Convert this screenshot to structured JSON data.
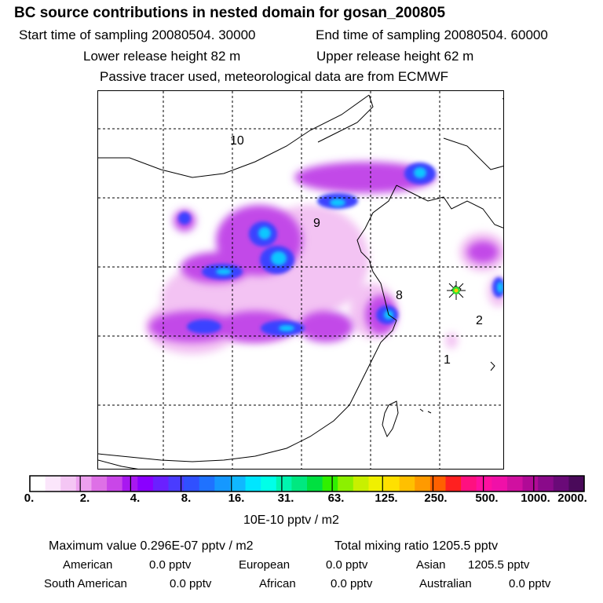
{
  "header": {
    "title": "BC  source contributions in nested domain for gosan_200805",
    "start_label": "Start time of sampling 20080504. 30000",
    "end_label": "End time of sampling 20080504. 60000",
    "lower_label": "Lower release height   82 m",
    "upper_label": "Upper release height   62 m",
    "tracer_note": "Passive tracer used, meteorological data are from ECMWF"
  },
  "map": {
    "trajectory_labels": [
      "10",
      "9",
      "8",
      "2",
      "1"
    ],
    "receptor_marker": "star-marker"
  },
  "colorbar": {
    "colors": [
      "#ffffff",
      "#fbe6fb",
      "#f4c6f4",
      "#eda0ef",
      "#de70e6",
      "#c946e8",
      "#a818f0",
      "#8a00ff",
      "#6a20ff",
      "#4a3cff",
      "#3050ff",
      "#1f72ff",
      "#1598ff",
      "#10b8ff",
      "#00e6ff",
      "#00ffe8",
      "#00f5b0",
      "#00e880",
      "#00e040",
      "#30f000",
      "#8cf000",
      "#c8f000",
      "#f0f000",
      "#ffe000",
      "#ffc000",
      "#ff9a00",
      "#ff6000",
      "#ff2020",
      "#ff1080",
      "#ff10a0",
      "#f010a8",
      "#d010a0",
      "#b00a96",
      "#8a0a8a",
      "#6a0a78",
      "#4a0a5a"
    ],
    "tick_labels": [
      "0.",
      "2.",
      "4.",
      "8.",
      "16.",
      "31.",
      "63.",
      "125.",
      "250.",
      "500.",
      "1000.",
      "2000."
    ],
    "unit_label": "10E-10 pptv / m2"
  },
  "footer": {
    "max_label": "Maximum value  0.296E-07 pptv / m2",
    "total_label": "Total mixing ratio     1205.5 pptv",
    "regions": [
      {
        "name": "American",
        "value": "0.0 pptv"
      },
      {
        "name": "European",
        "value": "0.0 pptv"
      },
      {
        "name": "Asian",
        "value": "1205.5 pptv"
      },
      {
        "name": "South American",
        "value": "0.0 pptv"
      },
      {
        "name": "African",
        "value": "0.0 pptv"
      },
      {
        "name": "Australian",
        "value": "0.0 pptv"
      }
    ]
  }
}
